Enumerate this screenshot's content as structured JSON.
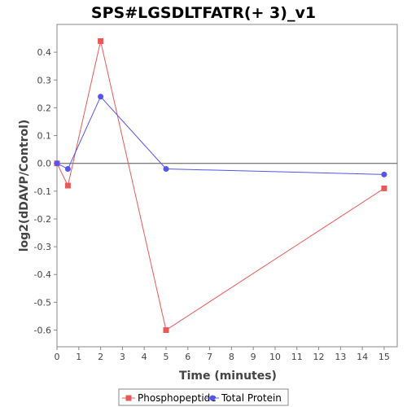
{
  "chart_data": {
    "type": "line",
    "title": "SPS#LGSDLTFATR(+ 3)_v1",
    "xlabel": "Time (minutes)",
    "ylabel": "log2(dDAVP/Control)",
    "xlim": [
      0,
      15.6
    ],
    "ylim": [
      -0.66,
      0.5
    ],
    "x_ticks": [
      0,
      1,
      2,
      3,
      4,
      5,
      6,
      7,
      8,
      9,
      10,
      11,
      12,
      13,
      14,
      15
    ],
    "y_ticks": [
      0.4,
      0.3,
      0.2,
      0.1,
      0.0,
      -0.1,
      -0.2,
      -0.3,
      -0.4,
      -0.5,
      -0.6
    ],
    "y_tick_labels": [
      "0.4",
      "0.3",
      "0.2",
      "0.1",
      "0.0",
      "-0.1",
      "-0.2",
      "-0.3",
      "-0.4",
      "-0.5",
      "-0.6"
    ],
    "grid": false,
    "legend_position": "bottom",
    "series": [
      {
        "name": "Phosphopeptide",
        "color": "#e85a5a",
        "marker": "square",
        "x": [
          0,
          0.5,
          2,
          5,
          15
        ],
        "y": [
          0.0,
          -0.08,
          0.44,
          -0.6,
          -0.09
        ]
      },
      {
        "name": "Total Protein",
        "color": "#5555ee",
        "marker": "circle",
        "x": [
          0,
          0.5,
          2,
          5,
          15
        ],
        "y": [
          0.0,
          -0.02,
          0.24,
          -0.02,
          -0.04
        ]
      }
    ]
  }
}
